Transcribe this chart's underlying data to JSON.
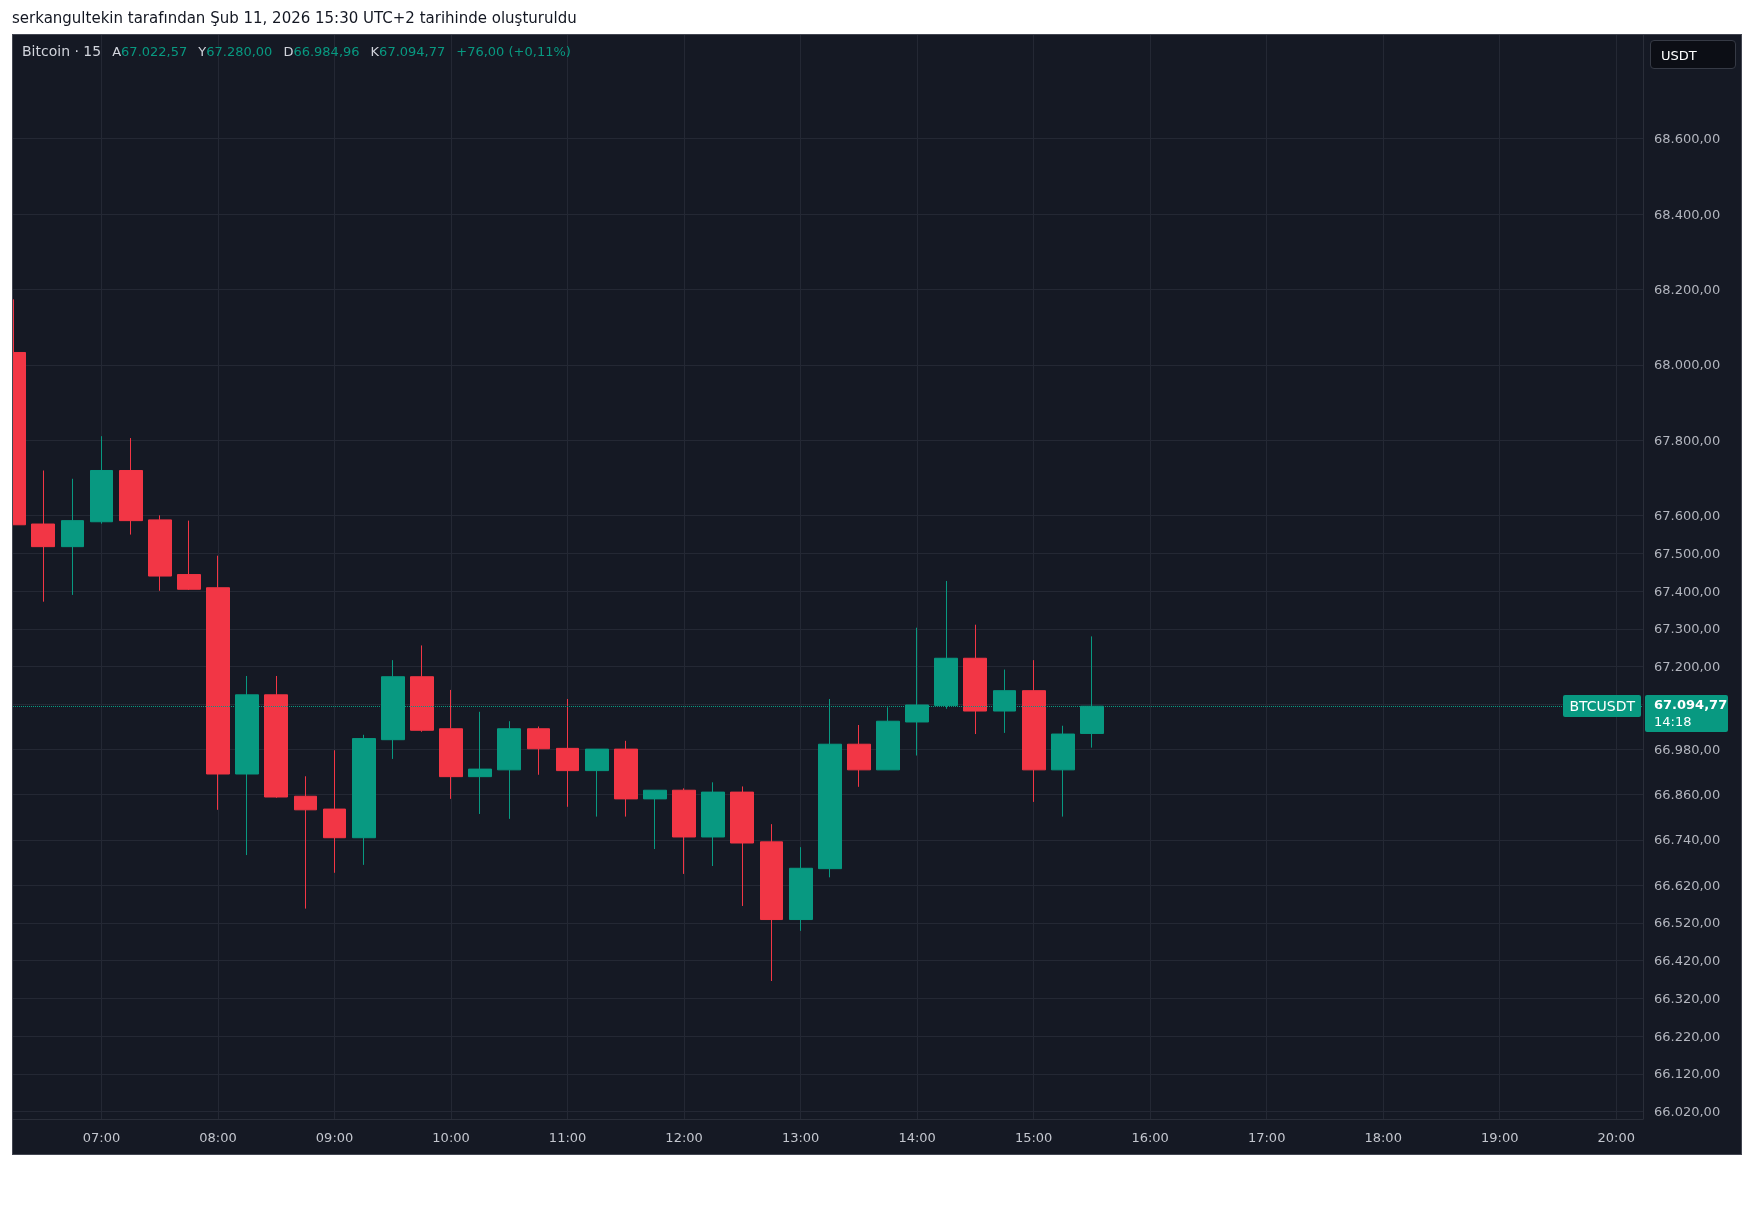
{
  "chart_data": {
    "type": "candlestick",
    "title": "serkangultekin tarafından Şub 11, 2026 15:30 UTC+2 tarihinde oluşturuldu",
    "subtitle": "Bitcoin · 15",
    "ylabel": "USDT",
    "annotations": [
      "A67.022,57",
      "Y67.280,00",
      "D66.984,96",
      "K67.094,77",
      "+76,00 (+0,11%)",
      "14:18"
    ],
    "x": [
      6.25,
      6.5,
      6.75,
      7,
      7.25,
      7.5,
      7.75,
      8,
      8.25,
      8.5,
      8.75,
      9,
      9.25,
      9.5,
      9.75,
      10,
      10.25,
      10.5,
      10.75,
      11,
      11.25,
      11.5,
      11.75,
      12,
      12.25,
      12.5,
      12.75,
      13,
      13.25,
      13.5,
      13.75,
      14,
      14.25,
      14.5,
      14.75,
      15,
      15.25,
      15.5
    ],
    "ohlc": [
      [
        68033,
        68174,
        67576,
        67576
      ],
      [
        67578,
        67720,
        67372,
        67518
      ],
      [
        67518,
        67698,
        67390,
        67587
      ],
      [
        67584,
        67811,
        67579,
        67720
      ],
      [
        67720,
        67806,
        67550,
        67587
      ],
      [
        67589,
        67601,
        67401,
        67440
      ],
      [
        67444,
        67587,
        67403,
        67405
      ],
      [
        67409,
        67494,
        66820,
        66915
      ],
      [
        66915,
        67175,
        66700,
        67125
      ],
      [
        67125,
        67175,
        66852,
        66854
      ],
      [
        66856,
        66909,
        66558,
        66820
      ],
      [
        66822,
        66978,
        66653,
        66746
      ],
      [
        66746,
        67019,
        66674,
        67009
      ],
      [
        67006,
        67217,
        66955,
        67173
      ],
      [
        67173,
        67256,
        67027,
        67031
      ],
      [
        67035,
        67138,
        66849,
        66908
      ],
      [
        66908,
        67080,
        66809,
        66928
      ],
      [
        66926,
        67055,
        66796,
        67035
      ],
      [
        67035,
        67041,
        66913,
        66982
      ],
      [
        66983,
        67114,
        66828,
        66924
      ],
      [
        66924,
        66981,
        66802,
        66981
      ],
      [
        66981,
        67003,
        66802,
        66849
      ],
      [
        66849,
        66872,
        66716,
        66872
      ],
      [
        66872,
        66877,
        66650,
        66748
      ],
      [
        66748,
        66893,
        66671,
        66867
      ],
      [
        66867,
        66882,
        66565,
        66732
      ],
      [
        66735,
        66782,
        66366,
        66529
      ],
      [
        66529,
        66721,
        66499,
        66665
      ],
      [
        66664,
        67114,
        66641,
        66994
      ],
      [
        66994,
        67045,
        66881,
        66926
      ],
      [
        66926,
        67092,
        66926,
        67055
      ],
      [
        67053,
        67303,
        66964,
        67098
      ],
      [
        67097,
        67427,
        67088,
        67222
      ],
      [
        67222,
        67311,
        67021,
        67082
      ],
      [
        67082,
        67192,
        67024,
        67136
      ],
      [
        67136,
        67217,
        66841,
        66926
      ],
      [
        66926,
        67043,
        66802,
        67021
      ],
      [
        67022.57,
        67280,
        66984.96,
        67094.77
      ]
    ],
    "colors": [
      "#f23645",
      "#f23645",
      "#089981",
      "#089981",
      "#f23645",
      "#f23645",
      "#f23645",
      "#f23645",
      "#089981",
      "#f23645",
      "#f23645",
      "#f23645",
      "#089981",
      "#089981",
      "#f23645",
      "#f23645",
      "#089981",
      "#089981",
      "#f23645",
      "#f23645",
      "#089981",
      "#f23645",
      "#089981",
      "#f23645",
      "#089981",
      "#f23645",
      "#f23645",
      "#089981",
      "#089981",
      "#f23645",
      "#089981",
      "#089981",
      "#089981",
      "#f23645",
      "#089981",
      "#f23645",
      "#089981",
      "#089981"
    ],
    "xlim": [
      6.24,
      20.23
    ],
    "xticks": [
      {
        "value": 7,
        "label": "07:00"
      },
      {
        "value": 8,
        "label": "08:00"
      },
      {
        "value": 9,
        "label": "09:00"
      },
      {
        "value": 10,
        "label": "10:00"
      },
      {
        "value": 11,
        "label": "11:00"
      },
      {
        "value": 12,
        "label": "12:00"
      },
      {
        "value": 13,
        "label": "13:00"
      },
      {
        "value": 14,
        "label": "14:00"
      },
      {
        "value": 15,
        "label": "15:00"
      },
      {
        "value": 16,
        "label": "16:00"
      },
      {
        "value": 17,
        "label": "17:00"
      },
      {
        "value": 18,
        "label": "18:00"
      },
      {
        "value": 19,
        "label": "19:00"
      },
      {
        "value": 20,
        "label": "20:00"
      }
    ],
    "ylim": [
      66000,
      68875
    ],
    "yticks": [
      {
        "value": 68600,
        "label": "68.600,00"
      },
      {
        "value": 68400,
        "label": "68.400,00"
      },
      {
        "value": 68200,
        "label": "68.200,00"
      },
      {
        "value": 68000,
        "label": "68.000,00"
      },
      {
        "value": 67800,
        "label": "67.800,00"
      },
      {
        "value": 67600,
        "label": "67.600,00"
      },
      {
        "value": 67500,
        "label": "67.500,00"
      },
      {
        "value": 67400,
        "label": "67.400,00"
      },
      {
        "value": 67300,
        "label": "67.300,00"
      },
      {
        "value": 67200,
        "label": "67.200,00"
      },
      {
        "value": 67100,
        "label": null
      },
      {
        "value": 67094.77,
        "label": "67.094,77"
      },
      {
        "value": 66980,
        "label": "66.980,00"
      },
      {
        "value": 66860,
        "label": "66.860,00"
      },
      {
        "value": 66740,
        "label": "66.740,00"
      },
      {
        "value": 66620,
        "label": "66.620,00"
      },
      {
        "value": 66520,
        "label": "66.520,00"
      },
      {
        "value": 66420,
        "label": "66.420,00"
      },
      {
        "value": 66320,
        "label": "66.320,00"
      },
      {
        "value": 66220,
        "label": "66.220,00"
      },
      {
        "value": 66120,
        "label": "66.120,00"
      },
      {
        "value": 66020,
        "label": "66.020,00"
      }
    ],
    "grid": true,
    "ref_lines": [
      {
        "axis": "y",
        "value": 67094.77,
        "label": "BTCUSDT",
        "color": "#089981",
        "line_style": "dotted"
      }
    ]
  }
}
